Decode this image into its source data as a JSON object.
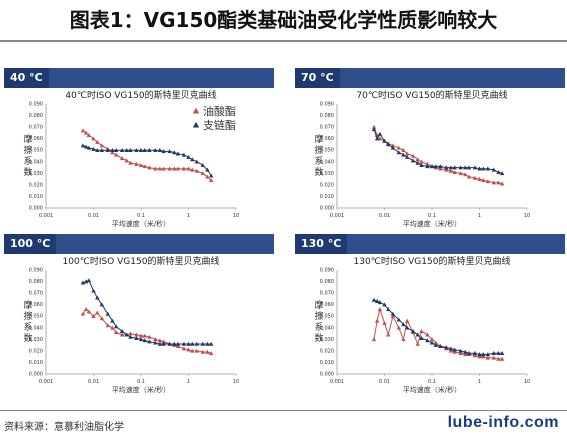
{
  "page_title": "图表1：VG150酯类基础油受化学性质影响较大",
  "source_note": "资料来源：意慕利油脂化学",
  "watermark": "lube-info.com",
  "colors": {
    "ester": "#c0504d",
    "branched": "#1f3864",
    "header": "#2e4f8c",
    "header_tag": "#1f3a6e"
  },
  "panels": [
    {
      "tag": "40 °C"
    },
    {
      "tag": "70 °C"
    },
    {
      "tag": "100 °C"
    },
    {
      "tag": "130 °C"
    }
  ],
  "chart_data": [
    {
      "type": "line",
      "title": "40℃时ISO VG150的斯特里贝克曲线",
      "xlabel": "平均速度（米/秒）",
      "ylabel": "摩擦系数",
      "x_scale": "log",
      "xlim": [
        0.001,
        10
      ],
      "ylim": [
        0,
        0.09
      ],
      "x_ticks": [
        "0.001",
        "0.01",
        "0.1",
        "1",
        "10"
      ],
      "y_ticks": [
        "0.000",
        "0.010",
        "0.020",
        "0.030",
        "0.040",
        "0.050",
        "0.060",
        "0.070",
        "0.080",
        "0.090"
      ],
      "legend": {
        "position": "top-right",
        "entries": [
          "油酸酯",
          "支链酯"
        ]
      },
      "series": [
        {
          "name": "油酸酯",
          "marker": "triangle-up",
          "color": "#c0504d",
          "x": [
            0.006,
            0.007,
            0.008,
            0.01,
            0.012,
            0.015,
            0.02,
            0.025,
            0.03,
            0.04,
            0.05,
            0.06,
            0.08,
            0.1,
            0.12,
            0.15,
            0.2,
            0.25,
            0.3,
            0.4,
            0.5,
            0.6,
            0.8,
            1,
            1.2,
            1.5,
            2,
            2.5,
            3
          ],
          "values": [
            0.067,
            0.065,
            0.063,
            0.06,
            0.057,
            0.054,
            0.051,
            0.048,
            0.046,
            0.043,
            0.041,
            0.039,
            0.038,
            0.037,
            0.036,
            0.035,
            0.034,
            0.034,
            0.034,
            0.034,
            0.034,
            0.034,
            0.034,
            0.034,
            0.033,
            0.032,
            0.03,
            0.027,
            0.024
          ]
        },
        {
          "name": "支链酯",
          "marker": "triangle-up",
          "color": "#1f3864",
          "x": [
            0.006,
            0.007,
            0.008,
            0.01,
            0.012,
            0.015,
            0.02,
            0.025,
            0.03,
            0.04,
            0.05,
            0.06,
            0.08,
            0.1,
            0.12,
            0.15,
            0.2,
            0.25,
            0.3,
            0.4,
            0.5,
            0.6,
            0.8,
            1,
            1.2,
            1.5,
            2,
            2.5,
            3
          ],
          "values": [
            0.054,
            0.053,
            0.052,
            0.051,
            0.05,
            0.05,
            0.05,
            0.05,
            0.05,
            0.05,
            0.05,
            0.05,
            0.05,
            0.05,
            0.05,
            0.05,
            0.05,
            0.05,
            0.049,
            0.049,
            0.048,
            0.047,
            0.046,
            0.044,
            0.042,
            0.04,
            0.037,
            0.033,
            0.028
          ]
        }
      ]
    },
    {
      "type": "line",
      "title": "70℃时ISO VG150的斯特里贝克曲线",
      "xlabel": "平均速度（米/秒）",
      "ylabel": "摩擦系数",
      "x_scale": "log",
      "xlim": [
        0.001,
        10
      ],
      "ylim": [
        0,
        0.09
      ],
      "x_ticks": [
        "0.001",
        "0.01",
        "0.1",
        "1",
        "10"
      ],
      "y_ticks": [
        "0.000",
        "0.010",
        "0.020",
        "0.030",
        "0.040",
        "0.050",
        "0.060",
        "0.070",
        "0.080",
        "0.090"
      ],
      "series": [
        {
          "name": "油酸酯",
          "marker": "triangle-up",
          "color": "#c0504d",
          "x": [
            0.006,
            0.007,
            0.008,
            0.01,
            0.012,
            0.015,
            0.02,
            0.025,
            0.03,
            0.04,
            0.05,
            0.06,
            0.08,
            0.1,
            0.12,
            0.15,
            0.2,
            0.25,
            0.3,
            0.4,
            0.5,
            0.6,
            0.8,
            1,
            1.2,
            1.5,
            2,
            2.5,
            3
          ],
          "values": [
            0.07,
            0.063,
            0.06,
            0.058,
            0.056,
            0.054,
            0.052,
            0.05,
            0.047,
            0.045,
            0.042,
            0.04,
            0.038,
            0.036,
            0.035,
            0.034,
            0.033,
            0.032,
            0.031,
            0.03,
            0.029,
            0.027,
            0.026,
            0.025,
            0.024,
            0.023,
            0.022,
            0.022,
            0.021
          ]
        },
        {
          "name": "支链酯",
          "marker": "triangle-up",
          "color": "#1f3864",
          "x": [
            0.006,
            0.007,
            0.008,
            0.01,
            0.012,
            0.015,
            0.02,
            0.025,
            0.03,
            0.04,
            0.05,
            0.06,
            0.08,
            0.1,
            0.12,
            0.15,
            0.2,
            0.25,
            0.3,
            0.4,
            0.5,
            0.6,
            0.8,
            1,
            1.2,
            1.5,
            2,
            2.5,
            3
          ],
          "values": [
            0.068,
            0.06,
            0.064,
            0.058,
            0.055,
            0.052,
            0.048,
            0.046,
            0.044,
            0.041,
            0.039,
            0.037,
            0.036,
            0.036,
            0.036,
            0.036,
            0.035,
            0.035,
            0.035,
            0.035,
            0.035,
            0.035,
            0.035,
            0.034,
            0.034,
            0.034,
            0.033,
            0.031,
            0.03
          ]
        }
      ]
    },
    {
      "type": "line",
      "title": "100℃时ISO VG150的斯特里贝克曲线",
      "xlabel": "平均速度（米/秒）",
      "ylabel": "摩擦系数",
      "x_scale": "log",
      "xlim": [
        0.001,
        10
      ],
      "ylim": [
        0,
        0.09
      ],
      "x_ticks": [
        "0.001",
        "0.01",
        "0.1",
        "1",
        "10"
      ],
      "y_ticks": [
        "0.000",
        "0.010",
        "0.020",
        "0.030",
        "0.040",
        "0.050",
        "0.060",
        "0.070",
        "0.080",
        "0.090"
      ],
      "series": [
        {
          "name": "油酸酯",
          "marker": "triangle-up",
          "color": "#c0504d",
          "x": [
            0.006,
            0.007,
            0.008,
            0.01,
            0.012,
            0.015,
            0.02,
            0.025,
            0.03,
            0.04,
            0.05,
            0.06,
            0.08,
            0.1,
            0.12,
            0.15,
            0.2,
            0.25,
            0.3,
            0.4,
            0.5,
            0.6,
            0.8,
            1,
            1.2,
            1.5,
            2,
            2.5,
            3
          ],
          "values": [
            0.052,
            0.056,
            0.054,
            0.05,
            0.053,
            0.048,
            0.042,
            0.04,
            0.036,
            0.034,
            0.034,
            0.035,
            0.034,
            0.033,
            0.033,
            0.032,
            0.03,
            0.029,
            0.028,
            0.026,
            0.025,
            0.024,
            0.022,
            0.021,
            0.02,
            0.02,
            0.019,
            0.019,
            0.018
          ]
        },
        {
          "name": "支链酯",
          "marker": "triangle-up",
          "color": "#1f3864",
          "x": [
            0.006,
            0.007,
            0.008,
            0.01,
            0.012,
            0.015,
            0.02,
            0.025,
            0.03,
            0.04,
            0.05,
            0.06,
            0.08,
            0.1,
            0.12,
            0.15,
            0.2,
            0.25,
            0.3,
            0.4,
            0.5,
            0.6,
            0.8,
            1,
            1.2,
            1.5,
            2,
            2.5,
            3
          ],
          "values": [
            0.079,
            0.08,
            0.081,
            0.072,
            0.066,
            0.06,
            0.052,
            0.046,
            0.041,
            0.037,
            0.034,
            0.032,
            0.031,
            0.03,
            0.029,
            0.028,
            0.027,
            0.026,
            0.026,
            0.026,
            0.026,
            0.026,
            0.026,
            0.026,
            0.026,
            0.026,
            0.026,
            0.026,
            0.026
          ]
        }
      ]
    },
    {
      "type": "line",
      "title": "130℃时ISO VG150的斯特里贝克曲线",
      "xlabel": "平均速度（米/秒）",
      "ylabel": "摩擦系数",
      "x_scale": "log",
      "xlim": [
        0.001,
        10
      ],
      "ylim": [
        0,
        0.09
      ],
      "x_ticks": [
        "0.001",
        "0.01",
        "0.1",
        "1",
        "10"
      ],
      "y_ticks": [
        "0.000",
        "0.010",
        "0.020",
        "0.030",
        "0.040",
        "0.050",
        "0.060",
        "0.070",
        "0.080",
        "0.090"
      ],
      "series": [
        {
          "name": "油酸酯",
          "marker": "triangle-up",
          "color": "#c0504d",
          "x": [
            0.006,
            0.007,
            0.008,
            0.01,
            0.012,
            0.015,
            0.02,
            0.025,
            0.03,
            0.04,
            0.05,
            0.06,
            0.08,
            0.1,
            0.12,
            0.15,
            0.2,
            0.25,
            0.3,
            0.4,
            0.5,
            0.6,
            0.8,
            1,
            1.2,
            1.5,
            2,
            2.5,
            3
          ],
          "values": [
            0.03,
            0.046,
            0.056,
            0.044,
            0.034,
            0.05,
            0.04,
            0.03,
            0.046,
            0.036,
            0.026,
            0.037,
            0.034,
            0.03,
            0.027,
            0.024,
            0.022,
            0.02,
            0.019,
            0.018,
            0.017,
            0.017,
            0.016,
            0.015,
            0.015,
            0.014,
            0.014,
            0.013,
            0.013
          ]
        },
        {
          "name": "支链酯",
          "marker": "triangle-up",
          "color": "#1f3864",
          "x": [
            0.006,
            0.007,
            0.008,
            0.01,
            0.012,
            0.015,
            0.02,
            0.025,
            0.03,
            0.04,
            0.05,
            0.06,
            0.08,
            0.1,
            0.12,
            0.15,
            0.2,
            0.25,
            0.3,
            0.4,
            0.5,
            0.6,
            0.8,
            1,
            1.2,
            1.5,
            2,
            2.5,
            3
          ],
          "values": [
            0.064,
            0.063,
            0.062,
            0.06,
            0.056,
            0.052,
            0.047,
            0.043,
            0.04,
            0.037,
            0.034,
            0.031,
            0.029,
            0.027,
            0.025,
            0.024,
            0.023,
            0.022,
            0.021,
            0.02,
            0.019,
            0.018,
            0.018,
            0.017,
            0.017,
            0.017,
            0.018,
            0.018,
            0.018
          ]
        }
      ]
    }
  ]
}
